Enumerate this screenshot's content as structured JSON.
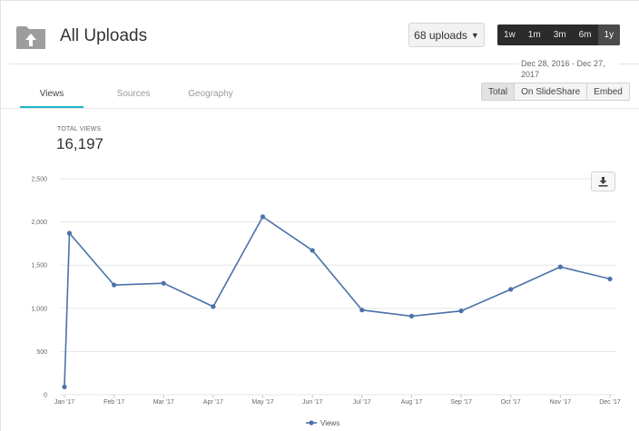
{
  "header": {
    "title": "All Uploads",
    "uploads_button": "68 uploads",
    "ranges": [
      "1w",
      "1m",
      "3m",
      "6m",
      "1y"
    ],
    "active_range": "1y",
    "date_range": "Dec 28, 2016 - Dec 27, 2017"
  },
  "tabs": [
    {
      "label": "Views",
      "active": true
    },
    {
      "label": "Sources",
      "active": false
    },
    {
      "label": "Geography",
      "active": false
    }
  ],
  "filters": [
    {
      "label": "Total",
      "active": true
    },
    {
      "label": "On SlideShare",
      "active": false
    },
    {
      "label": "Embed",
      "active": false
    }
  ],
  "summary": {
    "label": "TOTAL VIEWS",
    "value": "16,197"
  },
  "colors": {
    "accent": "#1fb4c4",
    "series": "#4a72a8",
    "grid": "#e6e6e6"
  },
  "icons": {
    "folder": "folder-upload-icon",
    "download": "download-icon",
    "caret": "caret-down-icon"
  },
  "chart_data": {
    "type": "line",
    "categories": [
      "Jan '17",
      "Feb '17",
      "Mar '17",
      "Apr '17",
      "May '17",
      "Jun '17",
      "Jul '17",
      "Aug '17",
      "Sep '17",
      "Oct '17",
      "Nov '17",
      "Dec '17"
    ],
    "points": [
      {
        "x": 0,
        "y": 90
      },
      {
        "x": 0.1,
        "y": 1870
      },
      {
        "x": 1,
        "y": 1270
      },
      {
        "x": 2,
        "y": 1290
      },
      {
        "x": 3,
        "y": 1020
      },
      {
        "x": 4,
        "y": 2060
      },
      {
        "x": 5,
        "y": 1670
      },
      {
        "x": 6,
        "y": 980
      },
      {
        "x": 7,
        "y": 910
      },
      {
        "x": 8,
        "y": 970
      },
      {
        "x": 9,
        "y": 1220
      },
      {
        "x": 10,
        "y": 1480
      },
      {
        "x": 11,
        "y": 1340
      }
    ],
    "series_name": "Views",
    "yticks": [
      "0",
      "500",
      "1,000",
      "1,500",
      "2,000",
      "2,500"
    ],
    "ylim": [
      0,
      2500
    ],
    "grid": true,
    "legend": "bottom"
  }
}
